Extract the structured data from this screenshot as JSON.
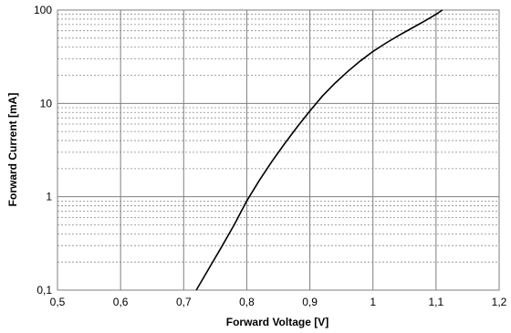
{
  "chart_data": {
    "type": "line",
    "title": "",
    "xlabel": "Forward Voltage [V]",
    "ylabel": "Forward Current [mA]",
    "xlim": [
      0.5,
      1.2
    ],
    "ylim": [
      0.1,
      100
    ],
    "yscale": "log",
    "grid": true,
    "legend": "none",
    "x_ticks": [
      "0,5",
      "0,6",
      "0,7",
      "0,8",
      "0,9",
      "1",
      "1,1",
      "1,2"
    ],
    "y_ticks": [
      "0,1",
      "1",
      "10",
      "100"
    ],
    "series": [
      {
        "x": [
          0.72,
          0.74,
          0.76,
          0.78,
          0.8,
          0.82,
          0.84,
          0.86,
          0.88,
          0.9,
          0.92,
          0.94,
          0.96,
          0.98,
          1.0,
          1.02,
          1.04,
          1.06,
          1.08,
          1.1,
          1.11
        ],
        "y": [
          0.1,
          0.17,
          0.29,
          0.5,
          0.9,
          1.5,
          2.4,
          3.7,
          5.6,
          8.3,
          12,
          16.5,
          22,
          28.5,
          36,
          44,
          53,
          63,
          75,
          90,
          100
        ],
        "color": "#000000"
      }
    ]
  }
}
